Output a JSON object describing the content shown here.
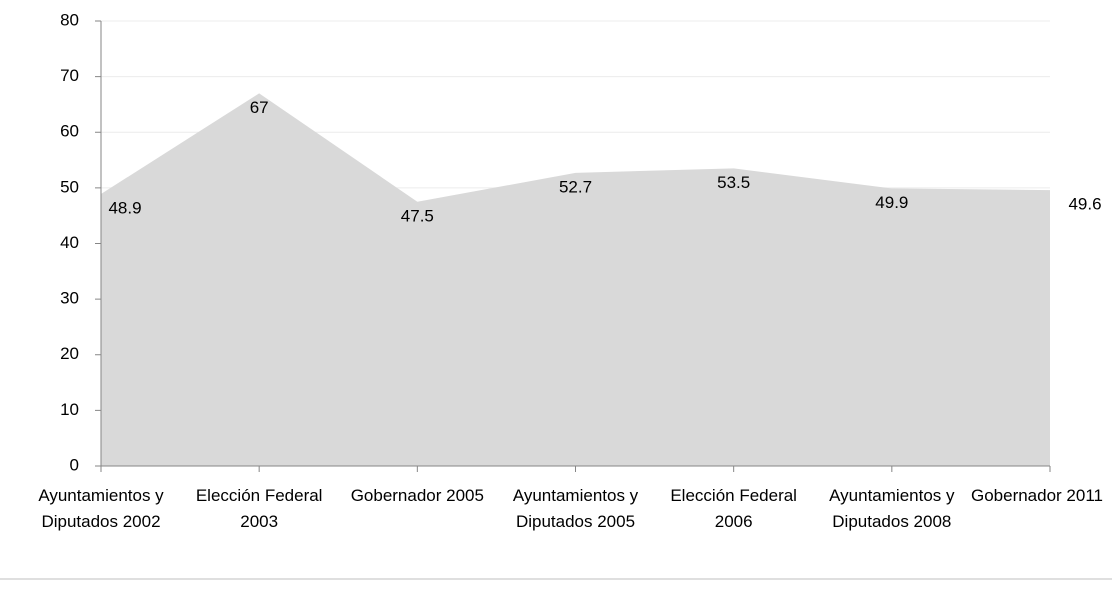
{
  "chart_data": {
    "type": "area",
    "categories": [
      "Ayuntamientos y Diputados 2002",
      "Elección Federal 2003",
      "Gobernador 2005",
      "Ayuntamientos y Diputados 2005",
      "Elección Federal 2006",
      "Ayuntamientos y Diputados 2008",
      "Gobernador 2011"
    ],
    "values": [
      48.9,
      67,
      47.5,
      52.7,
      53.5,
      49.9,
      49.6
    ],
    "color": "#d9d9d9",
    "ylim": [
      0,
      80
    ],
    "yticks": [
      0,
      10,
      20,
      30,
      40,
      50,
      60,
      70,
      80
    ],
    "grid": true
  }
}
